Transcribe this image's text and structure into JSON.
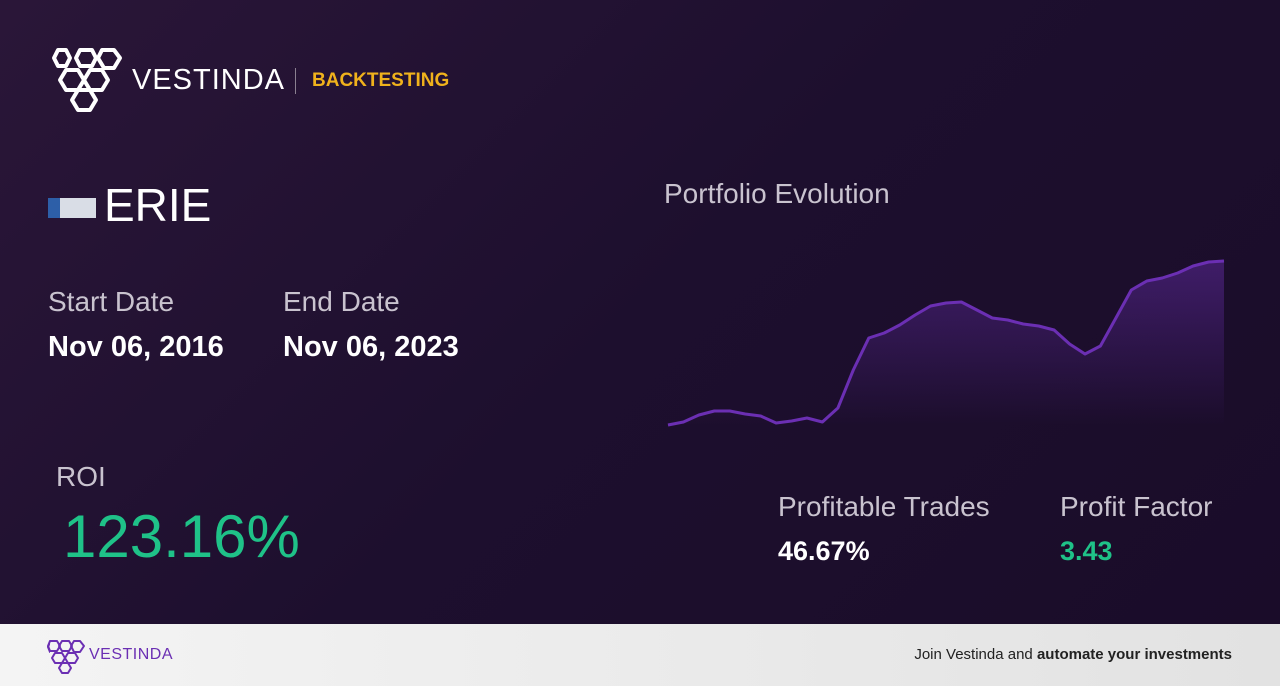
{
  "header": {
    "brand": "VESTINDA",
    "section": "BACKTESTING"
  },
  "asset": {
    "ticker": "ERIE"
  },
  "dates": {
    "start_label": "Start Date",
    "start_value": "Nov 06, 2016",
    "end_label": "End Date",
    "end_value": "Nov 06, 2023"
  },
  "roi": {
    "label": "ROI",
    "value": "123.16%"
  },
  "chart_data": {
    "type": "line",
    "title": "Portfolio Evolution",
    "color": "#6b2fb3",
    "values": [
      0,
      3,
      10,
      14,
      14,
      11,
      9,
      2,
      4,
      7,
      3,
      17,
      55,
      87,
      92,
      100,
      110,
      119,
      122,
      123,
      115,
      107,
      105,
      101,
      99,
      95,
      81,
      71,
      79,
      107,
      135,
      144,
      147,
      152,
      159,
      163,
      164
    ]
  },
  "metrics": {
    "profitable_label": "Profitable Trades",
    "profitable_value": "46.67%",
    "factor_label": "Profit Factor",
    "factor_value": "3.43"
  },
  "footer": {
    "brand": "VESTINDA",
    "cta_plain": "Join Vestinda and",
    "cta_bold": "automate your investments"
  }
}
